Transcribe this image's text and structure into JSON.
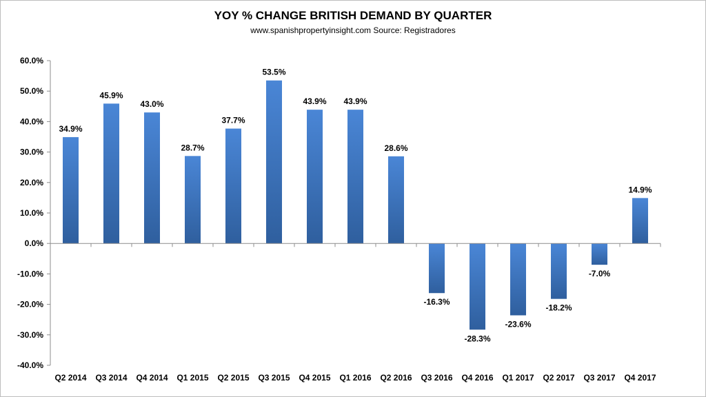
{
  "chart_data": {
    "type": "bar",
    "title": "YOY % CHANGE BRITISH DEMAND BY QUARTER",
    "subtitle": "www.spanishpropertyinsight.com Source: Registradores",
    "xlabel": "",
    "ylabel": "",
    "ylim": [
      -40,
      60
    ],
    "yticks": [
      "60.0%",
      "50.0%",
      "40.0%",
      "30.0%",
      "20.0%",
      "10.0%",
      "0.0%",
      "-10.0%",
      "-20.0%",
      "-30.0%",
      "-40.0%"
    ],
    "ytick_values": [
      60,
      50,
      40,
      30,
      20,
      10,
      0,
      -10,
      -20,
      -30,
      -40
    ],
    "categories": [
      "Q2 2014",
      "Q3 2014",
      "Q4 2014",
      "Q1 2015",
      "Q2 2015",
      "Q3 2015",
      "Q4 2015",
      "Q1 2016",
      "Q2 2016",
      "Q3 2016",
      "Q4 2016",
      "Q1 2017",
      "Q2 2017",
      "Q3 2017",
      "Q4 2017"
    ],
    "values": [
      34.9,
      45.9,
      43.0,
      28.7,
      37.7,
      53.5,
      43.9,
      43.9,
      28.6,
      -16.3,
      -28.3,
      -23.6,
      -18.2,
      -7.0,
      14.9
    ],
    "data_labels": [
      "34.9%",
      "45.9%",
      "43.0%",
      "28.7%",
      "37.7%",
      "53.5%",
      "43.9%",
      "43.9%",
      "28.6%",
      "-16.3%",
      "-28.3%",
      "-23.6%",
      "-18.2%",
      "-7.0%",
      "14.9%"
    ],
    "grid": false,
    "legend": "none",
    "colors": {
      "bar_top": "#4a86d6",
      "bar_bottom": "#2f5f9e",
      "axis": "#8c8c8c"
    }
  }
}
